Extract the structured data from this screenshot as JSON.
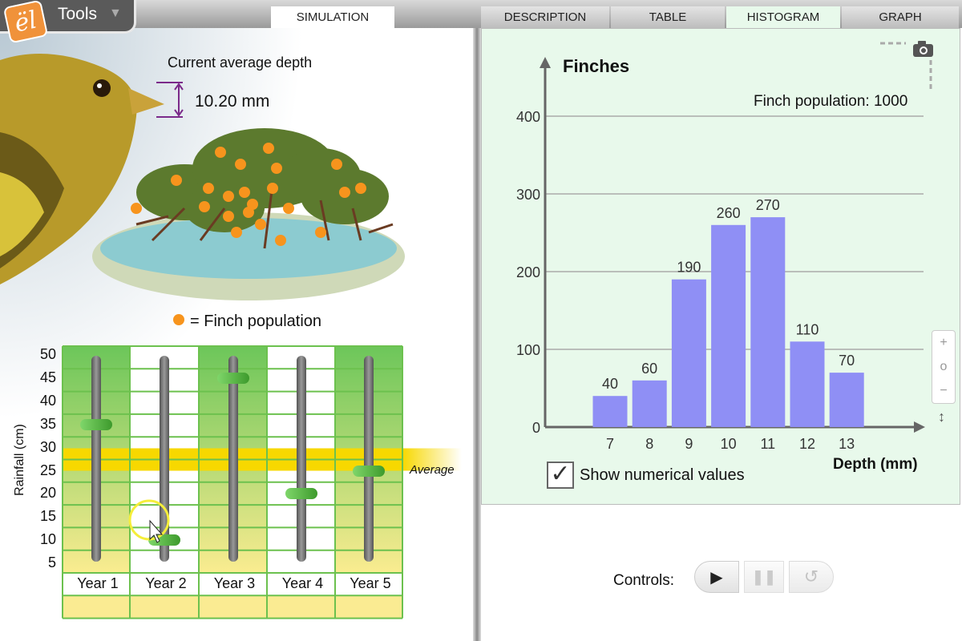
{
  "toolbar": {
    "tools_label": "Tools",
    "logo": "el"
  },
  "tabs": {
    "simulation": "SIMULATION",
    "description": "DESCRIPTION",
    "table": "TABLE",
    "histogram": "HISTOGRAM",
    "graph": "GRAPH",
    "active": "HISTOGRAM"
  },
  "simulation": {
    "depth_title": "Current average depth",
    "depth_value": "10.20 mm",
    "legend": "= Finch population",
    "legend_color": "#f7941d"
  },
  "rainfall": {
    "ylabel": "Rainfall (cm)",
    "ticks": [
      50,
      45,
      40,
      35,
      30,
      25,
      20,
      15,
      10,
      5
    ],
    "years": [
      "Year 1",
      "Year 2",
      "Year 3",
      "Year 4",
      "Year 5"
    ],
    "values": [
      35,
      10,
      45,
      20,
      25
    ],
    "average_label": "Average",
    "average": 25
  },
  "chart_data": {
    "type": "bar",
    "title": "Finches",
    "xlabel": "Depth (mm)",
    "ylabel": "",
    "categories": [
      "7",
      "8",
      "9",
      "10",
      "11",
      "12",
      "13"
    ],
    "values": [
      40,
      60,
      190,
      260,
      270,
      110,
      70
    ],
    "ylim": [
      0,
      400
    ],
    "yticks": [
      0,
      100,
      200,
      300,
      400
    ],
    "grid": true,
    "bar_color": "#8f8ff5",
    "annotation": "Finch population: 1000"
  },
  "histogram": {
    "show_values_label": "Show numerical values",
    "show_values_checked": true,
    "zoom_in": "+",
    "zoom_reset": "o",
    "zoom_out": "−",
    "zoom_scale": "↕"
  },
  "controls": {
    "label": "Controls:"
  }
}
